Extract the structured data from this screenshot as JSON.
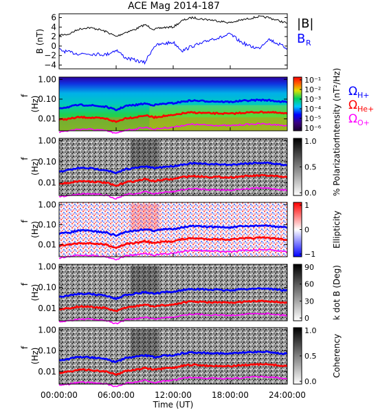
{
  "title": "ACE Mag 2014-187",
  "x_axis": {
    "label": "Time (UT)",
    "ticks": [
      "00:00:00",
      "06:00:00",
      "12:00:00",
      "18:00:00",
      "24:00:00"
    ]
  },
  "colors": {
    "B_total": "#000000",
    "B_R": "#0000ff",
    "H_plus": "#0000ff",
    "He_plus": "#ff0000",
    "O_plus": "#ff00ff"
  },
  "chart_data": [
    {
      "type": "line",
      "panel": "magnetic-field",
      "ylabel": "B (nT)",
      "yticks": [
        "6",
        "4",
        "2",
        "0",
        "−2",
        "−4"
      ],
      "ylim": [
        -4.8,
        6.8
      ],
      "x_hours": [
        0,
        1,
        2,
        3,
        4,
        5,
        6,
        7,
        8,
        9,
        10,
        11,
        12,
        13,
        14,
        15,
        16,
        17,
        18,
        19,
        20,
        21,
        22,
        23,
        24
      ],
      "series": [
        {
          "name": "|B|",
          "values": [
            2.3,
            2.5,
            3.5,
            3.9,
            3.6,
            3.0,
            2.0,
            2.9,
            3.5,
            4.5,
            3.5,
            3.9,
            4.0,
            5.4,
            6.0,
            5.7,
            5.5,
            5.2,
            4.9,
            5.4,
            5.8,
            6.2,
            6.0,
            5.4,
            4.8
          ]
        },
        {
          "name": "B",
          "label_sub": "R",
          "values": [
            -0.8,
            -1.3,
            -1.6,
            -1.6,
            -1.7,
            -1.8,
            -0.8,
            -2.5,
            -3.0,
            -3.5,
            0.0,
            0.5,
            0.8,
            -1.0,
            0.0,
            0.5,
            1.5,
            1.8,
            2.5,
            1.0,
            0.0,
            -0.5,
            1.5,
            0.5,
            -0.5
          ]
        }
      ]
    },
    {
      "type": "heatmap",
      "panel": "power-spectrum",
      "ylabel": "f (Hz)",
      "yticks": [
        "1.00",
        "0.10",
        "0.01"
      ],
      "colorbar": {
        "label": "Intensity (nT²/Hz)",
        "ticks": [
          "10⁻¹",
          "10⁻²",
          "10⁻³",
          "10⁻⁴",
          "10⁻⁵",
          "10⁻⁶"
        ]
      }
    },
    {
      "type": "heatmap",
      "panel": "polarization",
      "ylabel": "f (Hz)",
      "yticks": [
        "1.00",
        "0.10",
        "0.01"
      ],
      "colorbar": {
        "label": "% Polarization",
        "ticks": [
          "1.0",
          "0.5",
          "0.0"
        ]
      }
    },
    {
      "type": "heatmap",
      "panel": "ellipticity",
      "ylabel": "f (Hz)",
      "yticks": [
        "1.00",
        "0.10",
        "0.01"
      ],
      "colorbar": {
        "label": "Ellipticity",
        "ticks": [
          "1",
          "0",
          "−1"
        ]
      }
    },
    {
      "type": "heatmap",
      "panel": "k-dot-b",
      "ylabel": "f (Hz)",
      "yticks": [
        "1.00",
        "0.10",
        "0.01"
      ],
      "colorbar": {
        "label": "k dot B (Deg)",
        "ticks": [
          "90",
          "60",
          "30",
          "0"
        ]
      }
    },
    {
      "type": "heatmap",
      "panel": "coherency",
      "ylabel": "f (Hz)",
      "yticks": [
        "1.00",
        "0.10",
        "0.01"
      ],
      "colorbar": {
        "label": "Coherency",
        "ticks": [
          "1.0",
          "0.5",
          "0.0"
        ]
      }
    }
  ],
  "gyrofrequency_lines": {
    "x_hours": [
      0,
      1,
      2,
      3,
      4,
      5,
      6,
      7,
      8,
      9,
      10,
      11,
      12,
      13,
      14,
      15,
      16,
      17,
      18,
      19,
      20,
      21,
      22,
      23,
      24
    ],
    "H_plus_hz": [
      0.035,
      0.04,
      0.05,
      0.05,
      0.045,
      0.04,
      0.028,
      0.045,
      0.05,
      0.06,
      0.05,
      0.058,
      0.062,
      0.075,
      0.085,
      0.08,
      0.078,
      0.075,
      0.072,
      0.08,
      0.085,
      0.09,
      0.088,
      0.078,
      0.07
    ],
    "He_plus_hz": [
      0.009,
      0.01,
      0.012,
      0.012,
      0.011,
      0.01,
      0.007,
      0.011,
      0.012,
      0.015,
      0.012,
      0.014,
      0.015,
      0.019,
      0.021,
      0.02,
      0.019,
      0.019,
      0.018,
      0.02,
      0.021,
      0.022,
      0.022,
      0.02,
      0.018
    ],
    "O_plus_hz": [
      0.0022,
      0.0025,
      0.003,
      0.003,
      0.0028,
      0.0025,
      0.0018,
      0.0028,
      0.003,
      0.0038,
      0.003,
      0.0035,
      0.0038,
      0.0047,
      0.0053,
      0.005,
      0.0048,
      0.0047,
      0.0045,
      0.005,
      0.0053,
      0.0056,
      0.0055,
      0.0049,
      0.0045
    ]
  },
  "legend": {
    "B_total": "|B|",
    "B_R_main": "B",
    "B_R_sub": "R",
    "omega": "Ω",
    "H_sub": "H+",
    "He_sub": "He+",
    "O_sub": "O+"
  }
}
